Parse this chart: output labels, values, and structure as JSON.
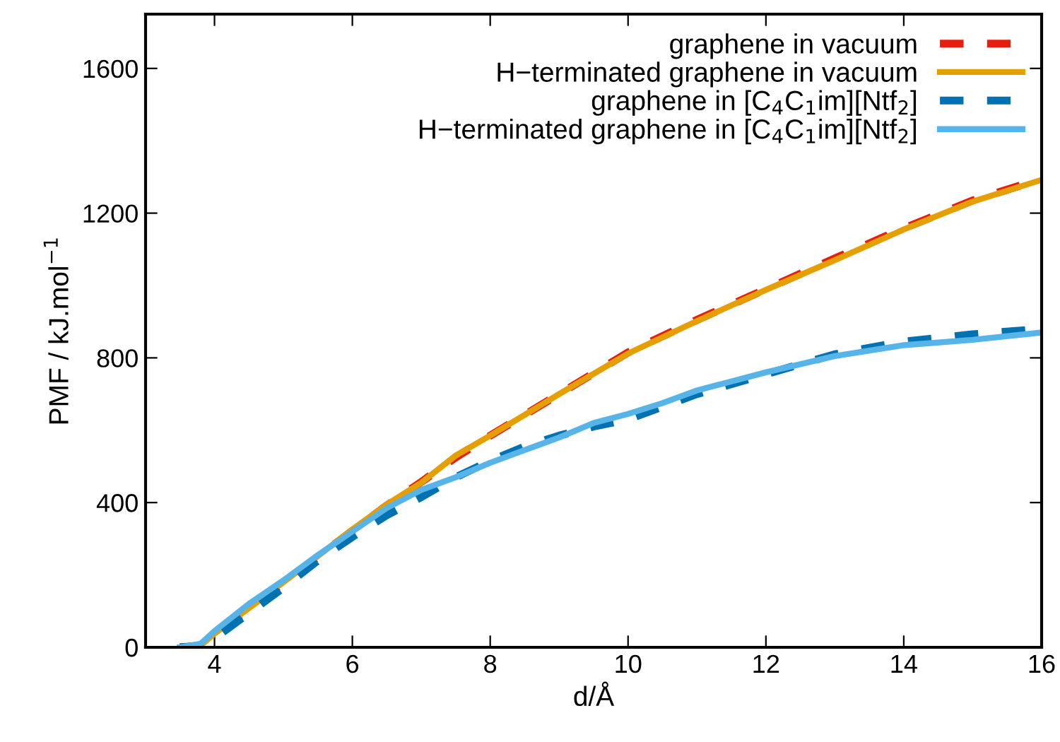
{
  "chart_data": {
    "type": "line",
    "xlabel": "d/Å",
    "ylabel": "PMF / kJ.mol$^{−1}$",
    "xlim": [
      3,
      16
    ],
    "ylim": [
      0,
      1750
    ],
    "xticks": [
      4,
      6,
      8,
      10,
      12,
      14,
      16
    ],
    "yticks": [
      0,
      400,
      800,
      1200,
      1600
    ],
    "legend": "top right",
    "grid": false,
    "marker": "none",
    "series": [
      {
        "name": "graphene in vacuum",
        "color": "#e51e10",
        "line_style": "dashed",
        "x": [
          3.5,
          3.8,
          4,
          4.5,
          5,
          5.5,
          6,
          6.5,
          7,
          7.5,
          8,
          9,
          10,
          11,
          12,
          13,
          14,
          15,
          16
        ],
        "values": [
          0,
          5,
          35,
          105,
          178,
          250,
          322,
          392,
          457,
          525,
          585,
          700,
          815,
          905,
          990,
          1075,
          1158,
          1235,
          1295
        ]
      },
      {
        "name": "H−terminated graphene in vacuum",
        "color": "#e69f00",
        "line_style": "solid",
        "x": [
          3.5,
          3.8,
          4,
          4.5,
          5,
          5.5,
          6,
          6.5,
          7,
          7.5,
          8,
          9,
          10,
          11,
          12,
          13,
          14,
          15,
          16
        ],
        "values": [
          0,
          5,
          38,
          108,
          180,
          252,
          326,
          395,
          455,
          530,
          585,
          700,
          812,
          902,
          988,
          1070,
          1155,
          1232,
          1292
        ]
      },
      {
        "name": "graphene in [C$_{4}$C$_{1}$im][Ntf$_{2}$]",
        "color": "#0072b2",
        "line_style": "dashed",
        "x": [
          3.5,
          3.8,
          4,
          4.5,
          5,
          5.5,
          6,
          6.5,
          7,
          7.5,
          8,
          8.5,
          9,
          9.5,
          10,
          10.5,
          11,
          12,
          13,
          14,
          15,
          16
        ],
        "values": [
          0,
          3,
          25,
          95,
          165,
          240,
          305,
          365,
          415,
          470,
          515,
          555,
          585,
          610,
          630,
          665,
          700,
          755,
          810,
          845,
          865,
          880
        ]
      },
      {
        "name": "H−terminated graphene in [C$_{4}$C$_{1}$im][Ntf$_{2}$]",
        "color": "#56b4e9",
        "line_style": "solid",
        "x": [
          3.5,
          3.8,
          4,
          4.5,
          5,
          5.5,
          6,
          6.5,
          7,
          7.5,
          8,
          8.5,
          9,
          9.5,
          10,
          10.5,
          11,
          12,
          13,
          14,
          15,
          16
        ],
        "values": [
          0,
          10,
          45,
          120,
          185,
          255,
          320,
          385,
          435,
          470,
          510,
          545,
          580,
          620,
          645,
          675,
          710,
          760,
          805,
          835,
          850,
          870
        ]
      }
    ]
  }
}
